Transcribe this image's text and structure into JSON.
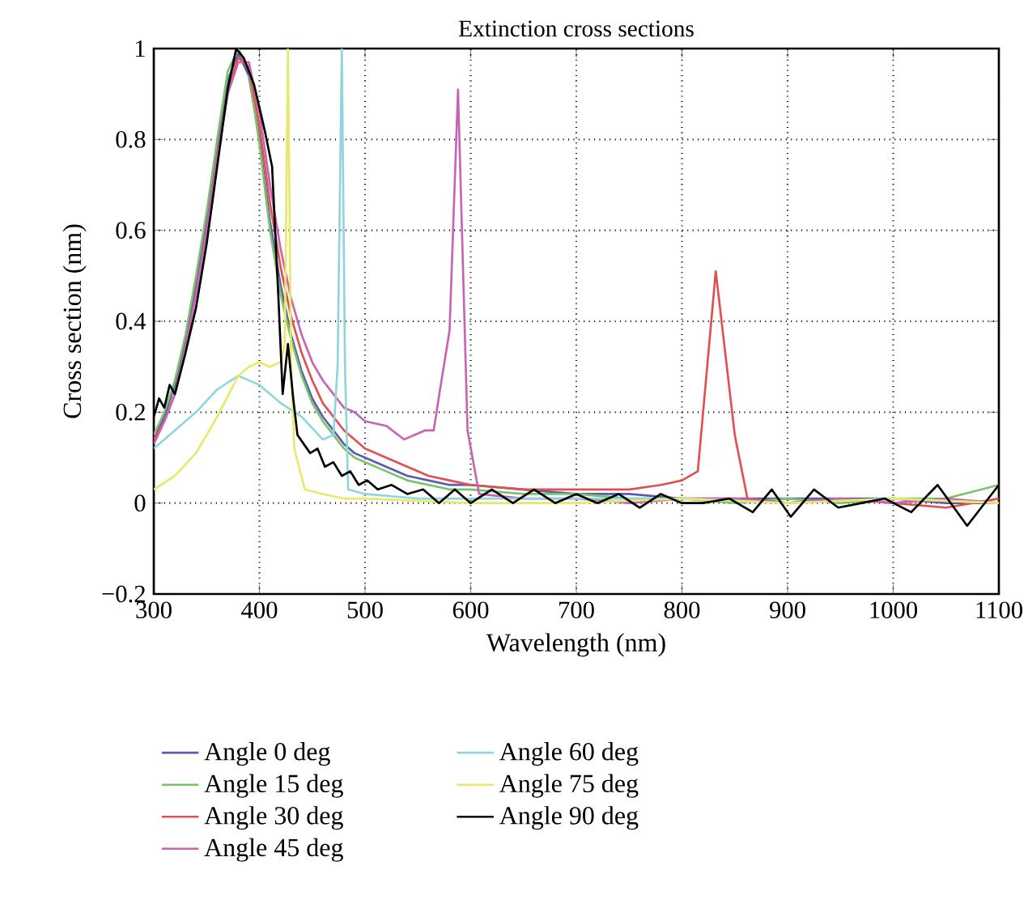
{
  "chart_data": {
    "type": "line",
    "title": "Extinction cross sections",
    "xlabel": "Wavelength (nm)",
    "ylabel": "Cross section (nm)",
    "xlim": [
      300,
      1100
    ],
    "ylim": [
      -0.2,
      1
    ],
    "xticks": [
      300,
      400,
      500,
      600,
      700,
      800,
      900,
      1000,
      1100
    ],
    "yticks": [
      {
        "value": -0.2,
        "label": "−0.2"
      },
      0,
      0.2,
      0.4,
      0.6,
      0.8,
      1
    ],
    "grid": true,
    "legend": "bottom",
    "marker": "none",
    "line_style": "solid",
    "series": [
      {
        "name": "Angle 0 deg",
        "color": "#5b5bb0",
        "x": [
          300,
          310,
          320,
          330,
          340,
          350,
          360,
          370,
          380,
          390,
          400,
          410,
          420,
          430,
          440,
          450,
          460,
          470,
          480,
          490,
          500,
          520,
          540,
          560,
          580,
          600,
          650,
          700,
          750,
          800,
          850,
          900,
          950,
          1000,
          1050,
          1100
        ],
        "values": [
          0.14,
          0.19,
          0.26,
          0.36,
          0.48,
          0.62,
          0.78,
          0.93,
          0.99,
          0.94,
          0.8,
          0.62,
          0.48,
          0.37,
          0.29,
          0.23,
          0.19,
          0.16,
          0.13,
          0.11,
          0.1,
          0.08,
          0.06,
          0.05,
          0.04,
          0.04,
          0.03,
          0.02,
          0.02,
          0.01,
          0.01,
          0.01,
          0.01,
          0.01,
          0.0,
          0.0
        ]
      },
      {
        "name": "Angle 15 deg",
        "color": "#7ac36a",
        "x": [
          300,
          310,
          320,
          330,
          340,
          350,
          360,
          370,
          380,
          390,
          400,
          410,
          420,
          430,
          440,
          450,
          460,
          470,
          480,
          490,
          500,
          520,
          540,
          560,
          580,
          600,
          650,
          700,
          750,
          800,
          850,
          900,
          950,
          1000,
          1050,
          1100
        ],
        "values": [
          0.15,
          0.2,
          0.27,
          0.37,
          0.5,
          0.64,
          0.8,
          0.95,
          1.0,
          0.95,
          0.79,
          0.6,
          0.46,
          0.36,
          0.28,
          0.22,
          0.18,
          0.15,
          0.12,
          0.1,
          0.09,
          0.07,
          0.05,
          0.04,
          0.03,
          0.03,
          0.02,
          0.02,
          0.01,
          0.01,
          0.0,
          0.01,
          0.0,
          0.01,
          0.01,
          0.04
        ]
      },
      {
        "name": "Angle 30 deg",
        "color": "#e05050",
        "x": [
          300,
          310,
          320,
          330,
          340,
          350,
          360,
          370,
          380,
          390,
          400,
          410,
          420,
          430,
          440,
          450,
          460,
          470,
          480,
          490,
          500,
          520,
          540,
          560,
          580,
          600,
          650,
          700,
          750,
          780,
          800,
          815,
          832,
          850,
          862,
          900,
          950,
          1000,
          1050,
          1100
        ],
        "values": [
          0.14,
          0.18,
          0.24,
          0.34,
          0.46,
          0.6,
          0.76,
          0.91,
          0.98,
          0.96,
          0.83,
          0.66,
          0.52,
          0.41,
          0.33,
          0.27,
          0.22,
          0.19,
          0.16,
          0.14,
          0.12,
          0.1,
          0.08,
          0.06,
          0.05,
          0.04,
          0.03,
          0.03,
          0.03,
          0.04,
          0.05,
          0.07,
          0.51,
          0.15,
          0.01,
          0.0,
          0.01,
          0.0,
          -0.01,
          0.01
        ]
      },
      {
        "name": "Angle 45 deg",
        "color": "#c864b4",
        "x": [
          300,
          310,
          320,
          330,
          340,
          350,
          360,
          370,
          380,
          390,
          400,
          410,
          420,
          430,
          440,
          450,
          460,
          470,
          480,
          490,
          500,
          520,
          537,
          557,
          565,
          571,
          580,
          588,
          597,
          608,
          650,
          700,
          750,
          800,
          850,
          900,
          950,
          1000,
          1050,
          1100
        ],
        "values": [
          0.13,
          0.18,
          0.24,
          0.34,
          0.46,
          0.6,
          0.76,
          0.9,
          0.97,
          0.97,
          0.86,
          0.7,
          0.56,
          0.45,
          0.37,
          0.31,
          0.27,
          0.24,
          0.21,
          0.2,
          0.18,
          0.17,
          0.14,
          0.16,
          0.16,
          0.25,
          0.38,
          0.91,
          0.16,
          0.02,
          0.01,
          0.01,
          0.0,
          0.01,
          0.01,
          0.0,
          0.01,
          0.0,
          0.01,
          0.0
        ]
      },
      {
        "name": "Angle 60 deg",
        "color": "#8fd6dc",
        "x": [
          300,
          320,
          340,
          360,
          380,
          400,
          420,
          440,
          460,
          470,
          474,
          478,
          481,
          484,
          500,
          550,
          600,
          700,
          800,
          900,
          1000,
          1100
        ],
        "values": [
          0.12,
          0.16,
          0.2,
          0.25,
          0.28,
          0.26,
          0.22,
          0.19,
          0.14,
          0.15,
          0.3,
          1.0,
          0.3,
          0.03,
          0.02,
          0.01,
          0.01,
          0.01,
          0.01,
          0.0,
          0.01,
          0.0
        ]
      },
      {
        "name": "Angle 75 deg",
        "color": "#e8e86a",
        "x": [
          300,
          320,
          340,
          360,
          380,
          390,
          400,
          410,
          420,
          424,
          427,
          430,
          433,
          443,
          460,
          480,
          500,
          600,
          700,
          800,
          900,
          1000,
          1100
        ],
        "values": [
          0.03,
          0.06,
          0.11,
          0.19,
          0.28,
          0.3,
          0.31,
          0.3,
          0.31,
          0.35,
          1.0,
          0.3,
          0.12,
          0.03,
          0.02,
          0.01,
          0.01,
          0.0,
          0.0,
          0.01,
          0.0,
          0.01,
          0.0
        ]
      },
      {
        "name": "Angle 90 deg",
        "color": "#000000",
        "x": [
          300,
          305,
          310,
          315,
          320,
          330,
          340,
          350,
          360,
          370,
          378,
          385,
          395,
          405,
          412,
          418,
          422,
          427,
          432,
          436,
          442,
          448,
          455,
          462,
          470,
          478,
          486,
          494,
          502,
          512,
          525,
          540,
          555,
          570,
          585,
          600,
          620,
          640,
          660,
          680,
          700,
          720,
          740,
          760,
          780,
          800,
          820,
          845,
          867,
          885,
          903,
          925,
          948,
          970,
          992,
          1017,
          1042,
          1070,
          1100
        ],
        "values": [
          0.19,
          0.23,
          0.21,
          0.26,
          0.24,
          0.33,
          0.43,
          0.57,
          0.74,
          0.91,
          1.0,
          0.98,
          0.92,
          0.82,
          0.74,
          0.45,
          0.24,
          0.35,
          0.23,
          0.15,
          0.13,
          0.11,
          0.12,
          0.08,
          0.09,
          0.06,
          0.07,
          0.04,
          0.05,
          0.03,
          0.04,
          0.02,
          0.03,
          0.0,
          0.03,
          0.0,
          0.03,
          0.0,
          0.03,
          0.0,
          0.02,
          0.0,
          0.02,
          -0.01,
          0.02,
          0.0,
          0.0,
          0.01,
          -0.02,
          0.03,
          -0.03,
          0.03,
          -0.01,
          0.0,
          0.01,
          -0.02,
          0.04,
          -0.05,
          0.04
        ]
      }
    ]
  }
}
